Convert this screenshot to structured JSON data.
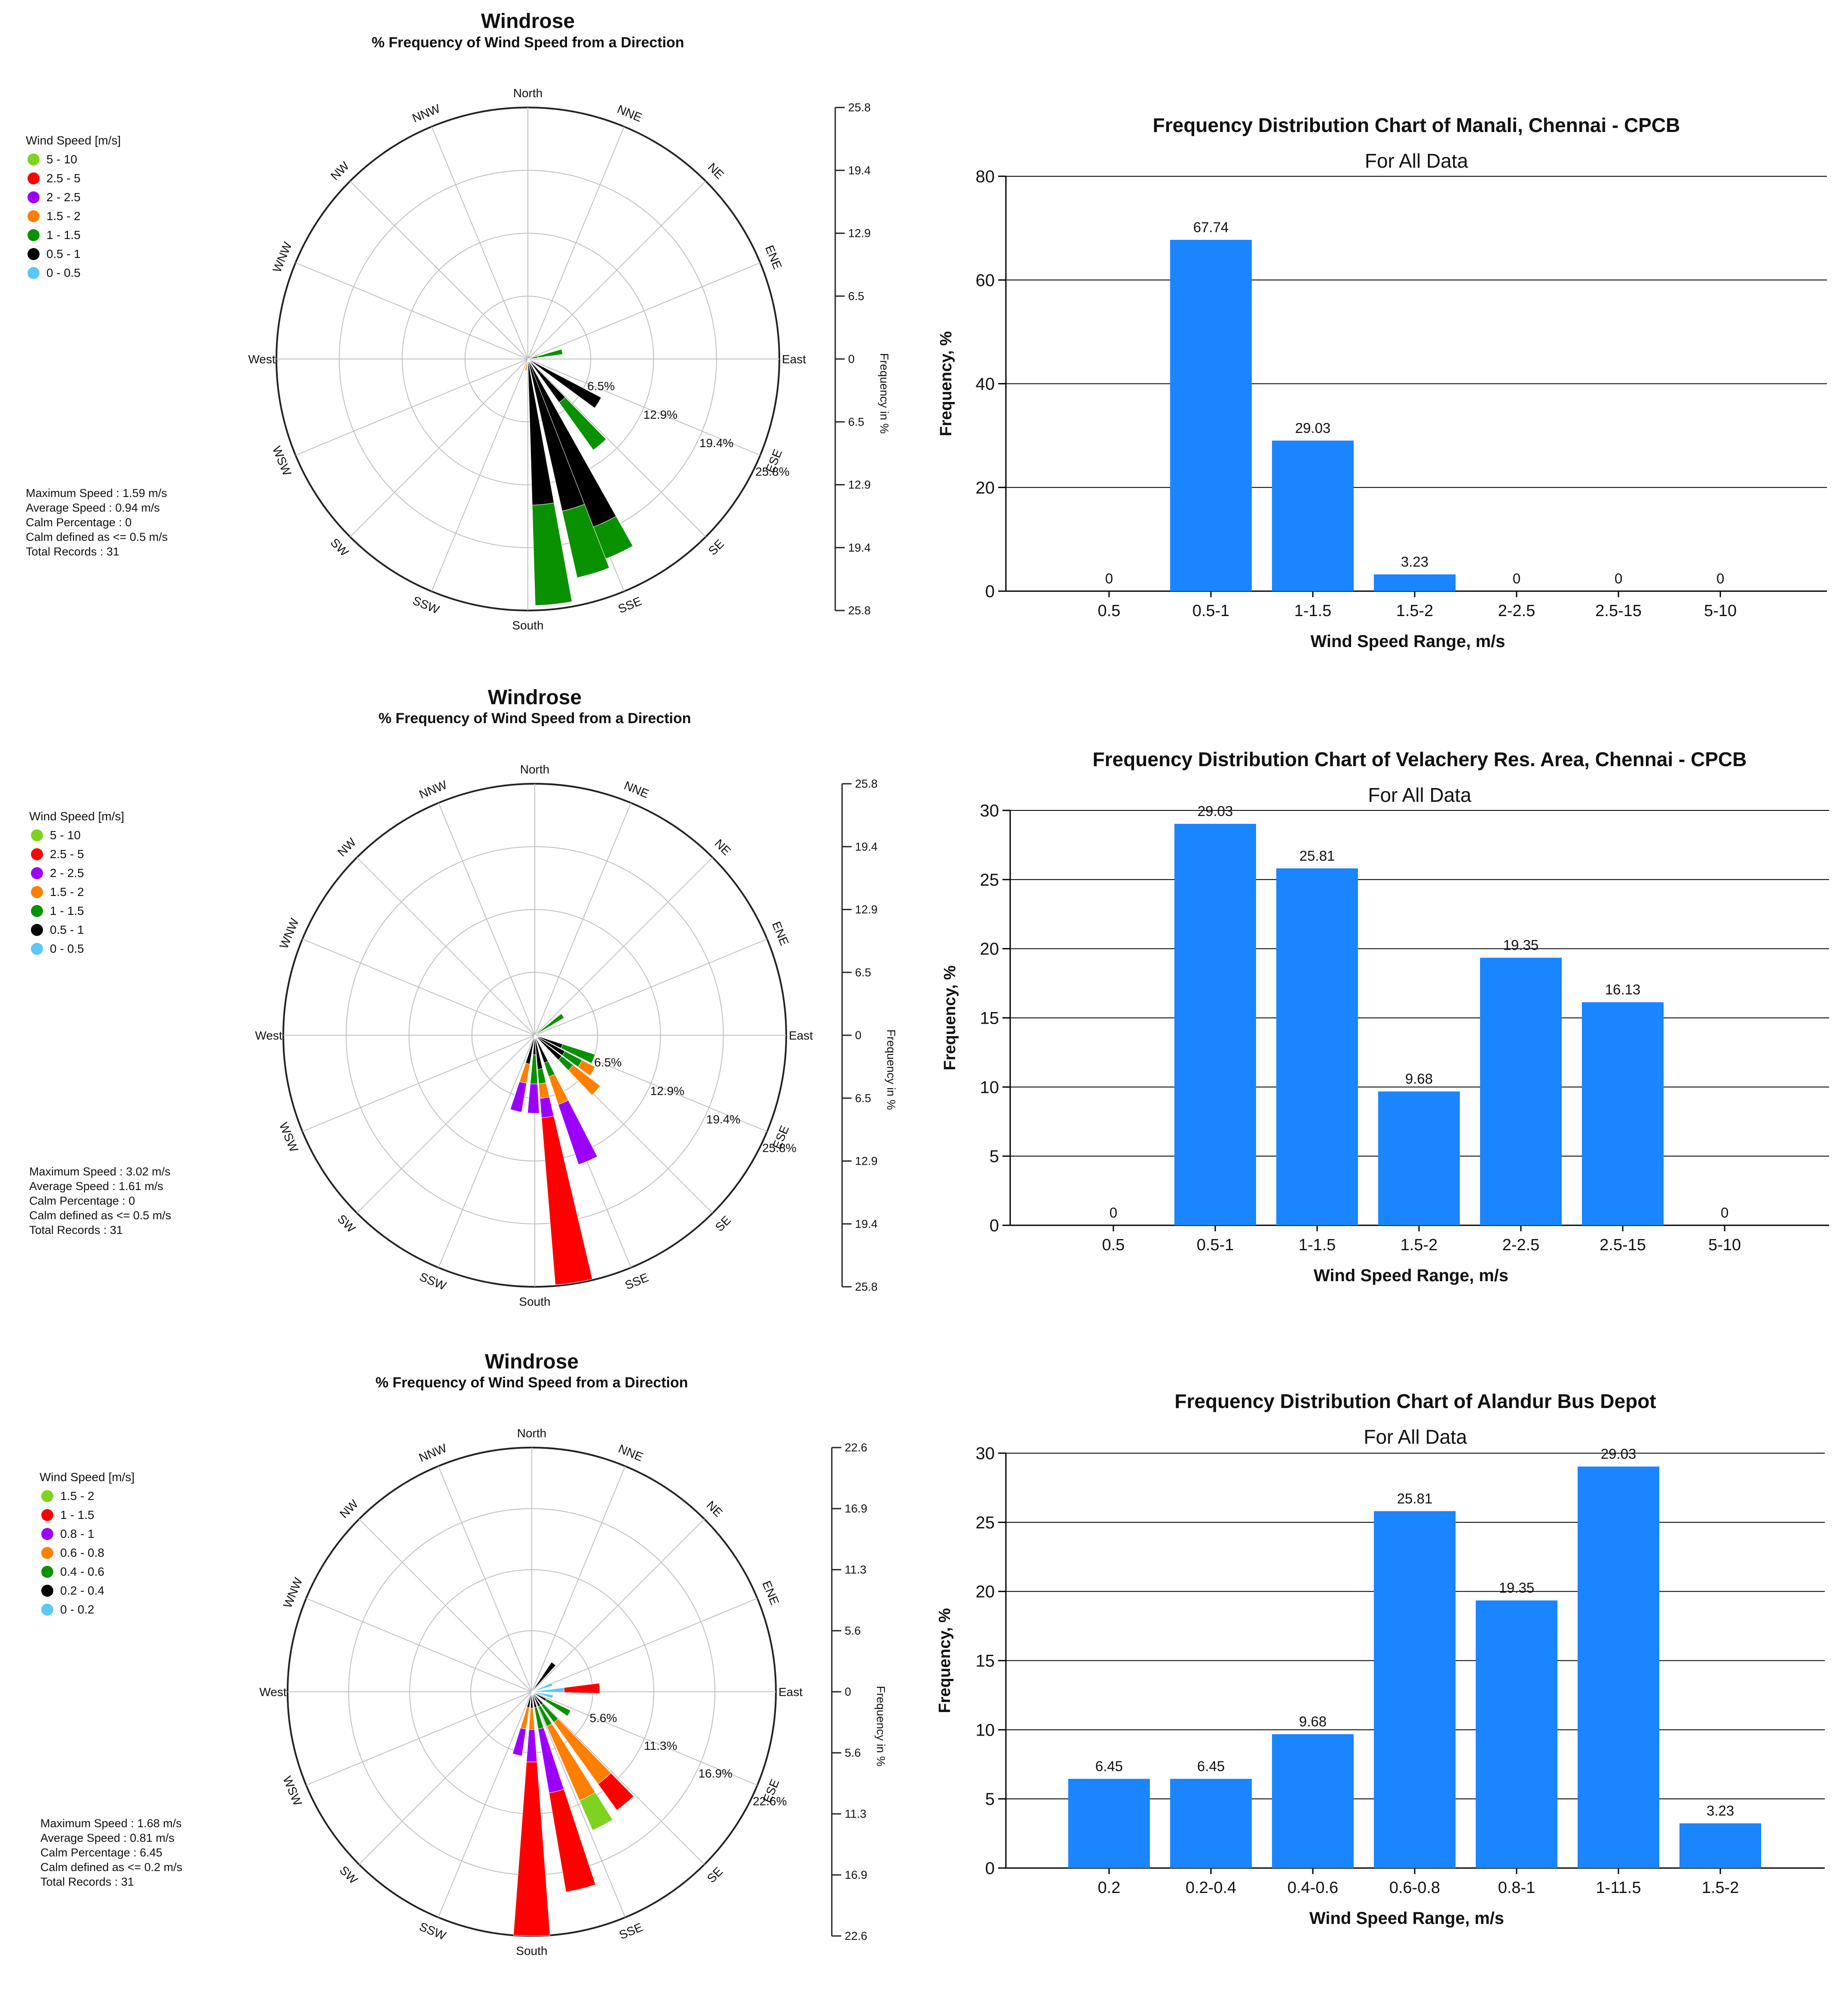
{
  "colors": {
    "bar": "#1a85ff",
    "grid": "#bfbfbf",
    "axis": "#333333",
    "text": "#111111"
  },
  "chart_data": [
    {
      "type": "windrose",
      "title": "Windrose",
      "subtitle": "% Frequency of Wind Speed from a Direction",
      "directions": [
        "North",
        "NNE",
        "NE",
        "ENE",
        "East",
        "ESE",
        "SE",
        "SSE",
        "South",
        "SSW",
        "SW",
        "WSW",
        "West",
        "WNW",
        "NW",
        "NNW"
      ],
      "legend_title": "Wind Speed [m/s]",
      "legend": [
        {
          "label": "5 - 10",
          "color": "#7ed321"
        },
        {
          "label": "2.5 - 5",
          "color": "#ff0000"
        },
        {
          "label": "2 - 2.5",
          "color": "#9b00ff"
        },
        {
          "label": "1.5 - 2",
          "color": "#ff7f00"
        },
        {
          "label": "1 - 1.5",
          "color": "#0a9100"
        },
        {
          "label": "0.5 - 1",
          "color": "#000000"
        },
        {
          "label": "0 - 0.5",
          "color": "#5bc8f5"
        }
      ],
      "max_frequency": 25.8,
      "ring_labels": [
        "6.5%",
        "12.9%",
        "19.4%",
        "25.8%"
      ],
      "scale_ticks": [
        "25.8",
        "19.4",
        "12.9",
        "6.5",
        "0",
        "6.5",
        "12.9",
        "19.4",
        "25.8"
      ],
      "scale_label": "Frequency in %",
      "stats": [
        "Maximum Speed : 1.59 m/s",
        "Average Speed : 0.94 m/s",
        "Calm Percentage : 0",
        "Calm defined as <= 0.5 m/s",
        "Total Records : 31"
      ],
      "petals": [
        {
          "angle": 78,
          "segments": [
            {
              "c": 5,
              "v": 1.0
            },
            {
              "c": 4,
              "v": 2.6
            }
          ]
        },
        {
          "angle": 122,
          "segments": [
            {
              "c": 5,
              "v": 8.5
            }
          ]
        },
        {
          "angle": 140,
          "segments": [
            {
              "c": 5,
              "v": 5.5
            },
            {
              "c": 4,
              "v": 6.0
            }
          ]
        },
        {
          "angle": 155,
          "segments": [
            {
              "c": 5,
              "v": 18.5
            },
            {
              "c": 4,
              "v": 3.5
            }
          ]
        },
        {
          "angle": 163,
          "segments": [
            {
              "c": 5,
              "v": 16.0
            },
            {
              "c": 4,
              "v": 7.0
            }
          ]
        },
        {
          "angle": 174,
          "segments": [
            {
              "c": 5,
              "v": 15.0
            },
            {
              "c": 4,
              "v": 10.3
            }
          ]
        },
        {
          "angle": 190,
          "segments": [
            {
              "c": 3,
              "v": 1.2
            }
          ]
        }
      ]
    },
    {
      "type": "bar",
      "title": "Frequency Distribution Chart of Manali, Chennai - CPCB",
      "subtitle": "For All Data",
      "xlabel": "Wind Speed Range, m/s",
      "ylabel": "Frequency, %",
      "categories": [
        "0.5",
        "0.5-1",
        "1-1.5",
        "1.5-2",
        "2-2.5",
        "2.5-15",
        "5-10"
      ],
      "values": [
        0,
        67.74,
        29.03,
        3.23,
        0,
        0,
        0
      ],
      "value_labels": [
        "0",
        "67.74",
        "29.03",
        "3.23",
        "0",
        "0",
        "0"
      ],
      "ylim": [
        0,
        80
      ],
      "yticks": [
        0,
        20,
        40,
        60,
        80
      ]
    },
    {
      "type": "windrose",
      "title": "Windrose",
      "subtitle": "% Frequency of Wind Speed from a Direction",
      "directions": [
        "North",
        "NNE",
        "NE",
        "ENE",
        "East",
        "ESE",
        "SE",
        "SSE",
        "South",
        "SSW",
        "SW",
        "WSW",
        "West",
        "WNW",
        "NW",
        "NNW"
      ],
      "legend_title": "Wind Speed [m/s]",
      "legend": [
        {
          "label": "5 - 10",
          "color": "#7ed321"
        },
        {
          "label": "2.5 - 5",
          "color": "#ff0000"
        },
        {
          "label": "2 - 2.5",
          "color": "#9b00ff"
        },
        {
          "label": "1.5 - 2",
          "color": "#ff7f00"
        },
        {
          "label": "1 - 1.5",
          "color": "#0a9100"
        },
        {
          "label": "0.5 - 1",
          "color": "#000000"
        },
        {
          "label": "0 - 0.5",
          "color": "#5bc8f5"
        }
      ],
      "max_frequency": 25.8,
      "ring_labels": [
        "6.5%",
        "12.9%",
        "19.4%",
        "25.8%"
      ],
      "scale_ticks": [
        "25.8",
        "19.4",
        "12.9",
        "6.5",
        "0",
        "6.5",
        "12.9",
        "19.4",
        "25.8"
      ],
      "scale_label": "Frequency in %",
      "stats": [
        "Maximum Speed : 3.02 m/s",
        "Average Speed : 1.61 m/s",
        "Calm Percentage : 0",
        "Calm defined as <= 0.5 m/s",
        "Total Records : 31"
      ],
      "petals": [
        {
          "angle": 55,
          "segments": [
            {
              "c": 4,
              "v": 3.5
            }
          ]
        },
        {
          "angle": 112,
          "segments": [
            {
              "c": 5,
              "v": 3.0
            },
            {
              "c": 4,
              "v": 3.5
            }
          ]
        },
        {
          "angle": 122,
          "segments": [
            {
              "c": 5,
              "v": 3.5
            },
            {
              "c": 4,
              "v": 2.0
            },
            {
              "c": 3,
              "v": 1.5
            }
          ]
        },
        {
          "angle": 132,
          "segments": [
            {
              "c": 5,
              "v": 3.5
            },
            {
              "c": 4,
              "v": 1.5
            },
            {
              "c": 3,
              "v": 3.5
            }
          ]
        },
        {
          "angle": 157,
          "segments": [
            {
              "c": 5,
              "v": 3.0
            },
            {
              "c": 4,
              "v": 1.5
            },
            {
              "c": 3,
              "v": 3.0
            },
            {
              "c": 2,
              "v": 6.5
            }
          ]
        },
        {
          "angle": 171,
          "segments": [
            {
              "c": 5,
              "v": 3.5
            },
            {
              "c": 4,
              "v": 1.5
            },
            {
              "c": 3,
              "v": 1.5
            },
            {
              "c": 2,
              "v": 2.0
            },
            {
              "c": 1,
              "v": 17.2
            }
          ]
        },
        {
          "angle": 181,
          "segments": [
            {
              "c": 5,
              "v": 2.0
            },
            {
              "c": 4,
              "v": 3.0
            },
            {
              "c": 2,
              "v": 3.0
            }
          ]
        },
        {
          "angle": 194,
          "segments": [
            {
              "c": 5,
              "v": 3.0
            },
            {
              "c": 3,
              "v": 2.0
            },
            {
              "c": 2,
              "v": 3.0
            }
          ]
        }
      ]
    },
    {
      "type": "bar",
      "title": "Frequency Distribution Chart of Velachery Res. Area, Chennai - CPCB",
      "subtitle": "For All Data",
      "xlabel": "Wind Speed Range, m/s",
      "ylabel": "Frequency, %",
      "categories": [
        "0.5",
        "0.5-1",
        "1-1.5",
        "1.5-2",
        "2-2.5",
        "2.5-15",
        "5-10"
      ],
      "values": [
        0,
        29.03,
        25.81,
        9.68,
        19.35,
        16.13,
        0
      ],
      "value_labels": [
        "0",
        "29.03",
        "25.81",
        "9.68",
        "19.35",
        "16.13",
        "0"
      ],
      "ylim": [
        0,
        30
      ],
      "yticks": [
        0,
        5,
        10,
        15,
        20,
        25,
        30
      ]
    },
    {
      "type": "windrose",
      "title": "Windrose",
      "subtitle": "% Frequency of Wind Speed from a Direction",
      "directions": [
        "North",
        "NNE",
        "NE",
        "ENE",
        "East",
        "ESE",
        "SE",
        "SSE",
        "South",
        "SSW",
        "SW",
        "WSW",
        "West",
        "WNW",
        "NW",
        "NNW"
      ],
      "legend_title": "Wind Speed [m/s]",
      "legend": [
        {
          "label": "1.5 - 2",
          "color": "#7ed321"
        },
        {
          "label": "1 - 1.5",
          "color": "#ff0000"
        },
        {
          "label": "0.8 - 1",
          "color": "#9b00ff"
        },
        {
          "label": "0.6 - 0.8",
          "color": "#ff7f00"
        },
        {
          "label": "0.4 - 0.6",
          "color": "#0a9100"
        },
        {
          "label": "0.2 - 0.4",
          "color": "#000000"
        },
        {
          "label": "0 - 0.2",
          "color": "#5bc8f5"
        }
      ],
      "max_frequency": 22.6,
      "ring_labels": [
        "5.6%",
        "11.3%",
        "16.9%",
        "22.6%"
      ],
      "scale_ticks": [
        "22.6",
        "16.9",
        "11.3",
        "5.6",
        "0",
        "5.6",
        "11.3",
        "16.9",
        "22.6"
      ],
      "scale_label": "Frequency in %",
      "stats": [
        "Maximum Speed : 1.68 m/s",
        "Average Speed : 0.81 m/s",
        "Calm Percentage : 6.45",
        "Calm defined as <= 0.2 m/s",
        "Total Records : 31"
      ],
      "petals": [
        {
          "angle": 38,
          "segments": [
            {
              "c": 5,
              "v": 3.3
            }
          ]
        },
        {
          "angle": 70,
          "segments": [
            {
              "c": 6,
              "v": 2.0
            }
          ]
        },
        {
          "angle": 87,
          "segments": [
            {
              "c": 6,
              "v": 3.0
            },
            {
              "c": 1,
              "v": 3.3
            }
          ]
        },
        {
          "angle": 103,
          "segments": [
            {
              "c": 6,
              "v": 2.0
            }
          ]
        },
        {
          "angle": 120,
          "segments": [
            {
              "c": 5,
              "v": 1.5
            },
            {
              "c": 4,
              "v": 2.5
            }
          ]
        },
        {
          "angle": 140,
          "segments": [
            {
              "c": 5,
              "v": 1.5
            },
            {
              "c": 4,
              "v": 2.0
            },
            {
              "c": 3,
              "v": 7.0
            },
            {
              "c": 1,
              "v": 3.0
            }
          ]
        },
        {
          "angle": 152,
          "segments": [
            {
              "c": 5,
              "v": 1.5
            },
            {
              "c": 4,
              "v": 2.0
            },
            {
              "c": 3,
              "v": 7.5
            },
            {
              "c": 0,
              "v": 3.0
            }
          ]
        },
        {
          "angle": 166,
          "segments": [
            {
              "c": 5,
              "v": 1.5
            },
            {
              "c": 4,
              "v": 2.0
            },
            {
              "c": 2,
              "v": 6.0
            },
            {
              "c": 1,
              "v": 9.3
            }
          ]
        },
        {
          "angle": 180,
          "segments": [
            {
              "c": 5,
              "v": 1.5
            },
            {
              "c": 3,
              "v": 2.0
            },
            {
              "c": 2,
              "v": 3.0
            },
            {
              "c": 1,
              "v": 16.1
            }
          ]
        },
        {
          "angle": 193,
          "segments": [
            {
              "c": 5,
              "v": 1.5
            },
            {
              "c": 3,
              "v": 2.0
            },
            {
              "c": 2,
              "v": 2.5
            }
          ]
        }
      ]
    },
    {
      "type": "bar",
      "title": "Frequency Distribution Chart of Alandur Bus Depot",
      "subtitle": "For All Data",
      "xlabel": "Wind Speed Range, m/s",
      "ylabel": "Frequency, %",
      "categories": [
        "0.2",
        "0.2-0.4",
        "0.4-0.6",
        "0.6-0.8",
        "0.8-1",
        "1-11.5",
        "1.5-2"
      ],
      "values": [
        6.45,
        6.45,
        9.68,
        25.81,
        19.35,
        29.03,
        3.23
      ],
      "value_labels": [
        "6.45",
        "6.45",
        "9.68",
        "25.81",
        "19.35",
        "29.03",
        "3.23"
      ],
      "ylim": [
        0,
        30
      ],
      "yticks": [
        0,
        5,
        10,
        15,
        20,
        25,
        30
      ]
    }
  ]
}
